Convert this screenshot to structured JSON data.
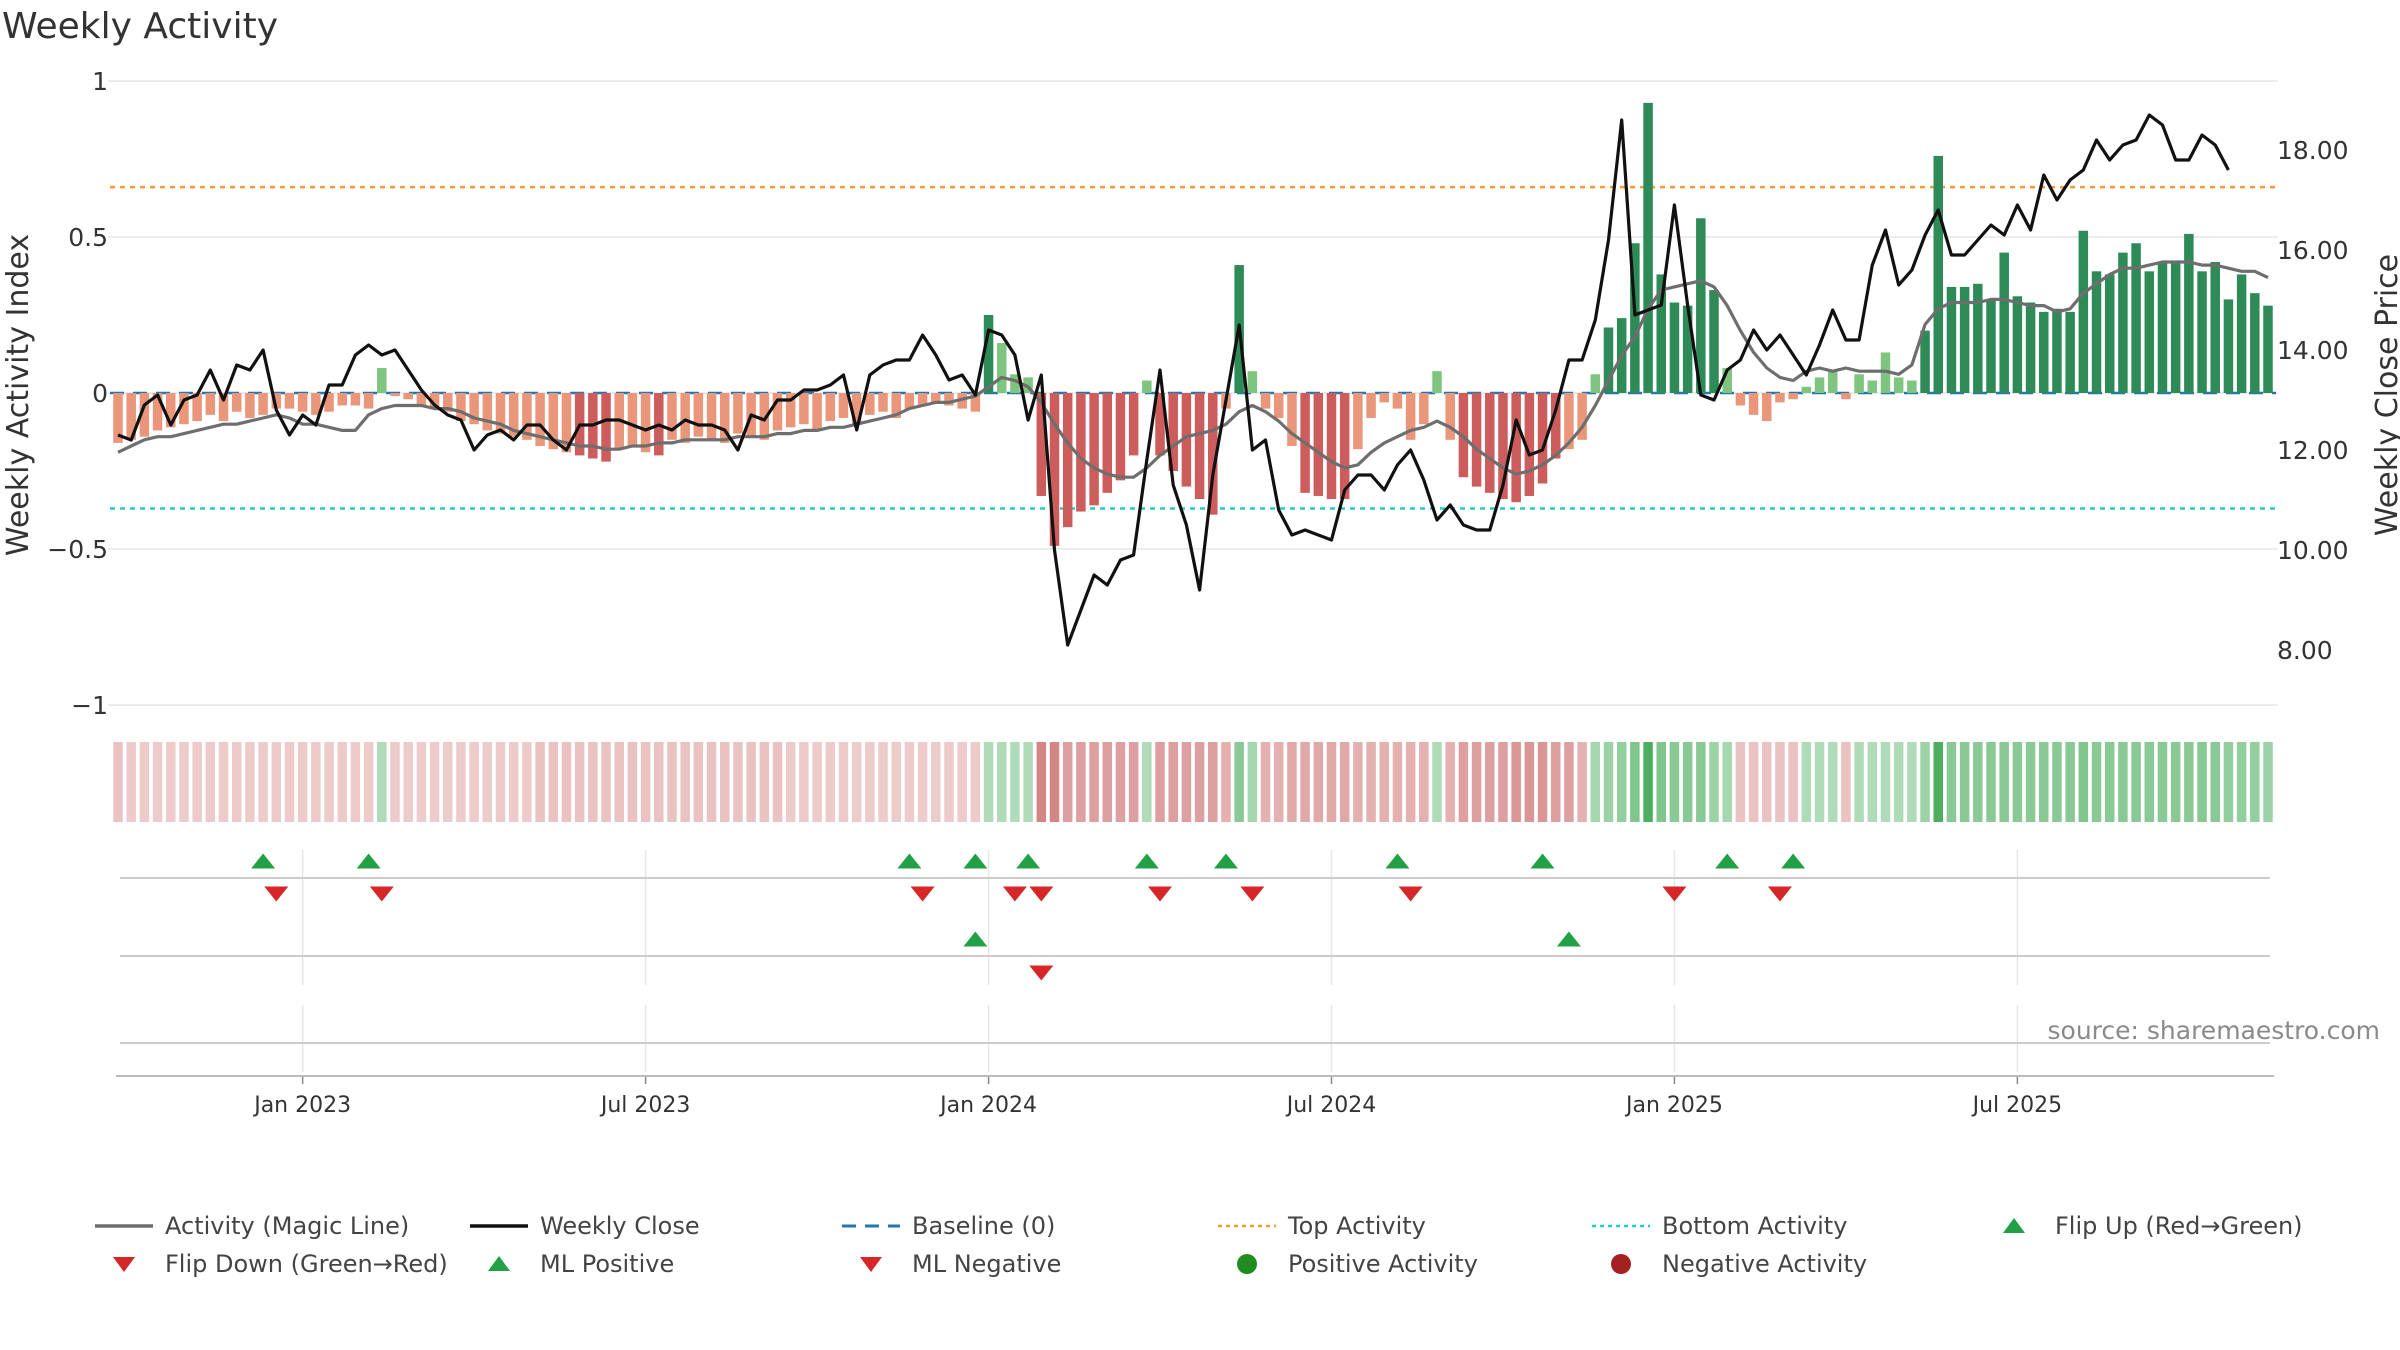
{
  "title": "Weekly Activity",
  "source": "source: sharemaestro.com",
  "colors": {
    "pos_dark": "#2e8b57",
    "pos_light": "#7fc47f",
    "neg_dark": "#cd5c5c",
    "neg_light": "#e9967a",
    "magic": "#6e6e6e",
    "close": "#111111",
    "baseline": "#1f77b4",
    "top": "#ff9933",
    "bottom": "#22cccc",
    "tri_up": "#22a045",
    "tri_down": "#d62728",
    "dot_pos": "#228b22",
    "dot_neg": "#a52020",
    "grid": "#e6e6e6"
  },
  "chart_data": {
    "type": "bar",
    "title": "Weekly Activity",
    "ylabel_left": "Weekly Activity Index",
    "ylabel_right": "Weekly Close Price",
    "ylim_left": [
      -1,
      1
    ],
    "ylim_right": [
      7.0,
      19.3
    ],
    "yticks_left": [
      {
        "v": 1,
        "label": "1"
      },
      {
        "v": 0.5,
        "label": "0.5"
      },
      {
        "v": 0,
        "label": "0"
      },
      {
        "v": -0.5,
        "label": "−0.5"
      },
      {
        "v": -1,
        "label": "−1"
      }
    ],
    "yticks_right": [
      {
        "v": 8,
        "label": "8.00"
      },
      {
        "v": 10,
        "label": "10.00"
      },
      {
        "v": 12,
        "label": "12.00"
      },
      {
        "v": 14,
        "label": "14.00"
      },
      {
        "v": 16,
        "label": "16.00"
      },
      {
        "v": 18,
        "label": "18.00"
      }
    ],
    "xticks": [
      {
        "week": 14,
        "label": "Jan 2023"
      },
      {
        "week": 40,
        "label": "Jul 2023"
      },
      {
        "week": 66,
        "label": "Jan 2024"
      },
      {
        "week": 92,
        "label": "Jul 2024"
      },
      {
        "week": 118,
        "label": "Jan 2025"
      },
      {
        "week": 144,
        "label": "Jul 2025"
      }
    ],
    "top_activity": 0.66,
    "bottom_activity": -0.37,
    "baseline": 0,
    "activity_index": [
      -0.16,
      -0.15,
      -0.14,
      -0.12,
      -0.11,
      -0.1,
      -0.09,
      -0.07,
      -0.09,
      -0.06,
      -0.08,
      -0.07,
      -0.05,
      -0.05,
      -0.06,
      -0.07,
      -0.06,
      -0.04,
      -0.04,
      -0.05,
      0.08,
      -0.01,
      -0.02,
      -0.04,
      -0.05,
      -0.06,
      -0.09,
      -0.1,
      -0.12,
      -0.13,
      -0.14,
      -0.15,
      -0.17,
      -0.18,
      -0.19,
      -0.2,
      -0.21,
      -0.22,
      -0.18,
      -0.17,
      -0.19,
      -0.2,
      -0.15,
      -0.16,
      -0.14,
      -0.15,
      -0.16,
      -0.13,
      -0.14,
      -0.15,
      -0.12,
      -0.11,
      -0.1,
      -0.12,
      -0.09,
      -0.08,
      -0.1,
      -0.07,
      -0.06,
      -0.08,
      -0.05,
      -0.04,
      -0.03,
      -0.04,
      -0.05,
      -0.06,
      0.25,
      0.16,
      0.06,
      0.05,
      -0.33,
      -0.49,
      -0.43,
      -0.38,
      -0.36,
      -0.32,
      -0.28,
      -0.2,
      0.04,
      -0.2,
      -0.25,
      -0.3,
      -0.34,
      -0.39,
      -0.05,
      0.41,
      0.07,
      -0.05,
      -0.08,
      -0.17,
      -0.32,
      -0.33,
      -0.34,
      -0.34,
      -0.18,
      -0.08,
      -0.03,
      -0.05,
      -0.15,
      -0.1,
      0.07,
      -0.15,
      -0.27,
      -0.3,
      -0.32,
      -0.34,
      -0.35,
      -0.33,
      -0.29,
      -0.21,
      -0.18,
      -0.15,
      0.06,
      0.21,
      0.24,
      0.48,
      0.93,
      0.38,
      0.29,
      0.28,
      0.56,
      0.33,
      0.08,
      -0.04,
      -0.07,
      -0.09,
      -0.03,
      -0.02,
      0.02,
      0.05,
      0.07,
      -0.02,
      0.06,
      0.04,
      0.13,
      0.05,
      0.04,
      0.2,
      0.76,
      0.34,
      0.34,
      0.35,
      0.3,
      0.45,
      0.31,
      0.29,
      0.26,
      0.27,
      0.26,
      0.52,
      0.39,
      0.38,
      0.45,
      0.48,
      0.39,
      0.42,
      0.42,
      0.51,
      0.39,
      0.42,
      0.3,
      0.38,
      0.32,
      0.28
    ],
    "magic_line": [
      -0.19,
      -0.17,
      -0.15,
      -0.14,
      -0.14,
      -0.13,
      -0.12,
      -0.11,
      -0.1,
      -0.1,
      -0.09,
      -0.08,
      -0.07,
      -0.08,
      -0.1,
      -0.1,
      -0.11,
      -0.12,
      -0.12,
      -0.07,
      -0.05,
      -0.04,
      -0.04,
      -0.04,
      -0.05,
      -0.05,
      -0.06,
      -0.08,
      -0.09,
      -0.1,
      -0.12,
      -0.13,
      -0.14,
      -0.15,
      -0.16,
      -0.17,
      -0.17,
      -0.18,
      -0.18,
      -0.17,
      -0.17,
      -0.16,
      -0.16,
      -0.15,
      -0.15,
      -0.15,
      -0.15,
      -0.14,
      -0.14,
      -0.14,
      -0.13,
      -0.13,
      -0.12,
      -0.12,
      -0.11,
      -0.11,
      -0.1,
      -0.09,
      -0.08,
      -0.07,
      -0.05,
      -0.04,
      -0.03,
      -0.03,
      -0.02,
      -0.01,
      0.02,
      0.05,
      0.04,
      0.02,
      -0.03,
      -0.1,
      -0.16,
      -0.21,
      -0.24,
      -0.26,
      -0.27,
      -0.27,
      -0.24,
      -0.2,
      -0.17,
      -0.14,
      -0.13,
      -0.12,
      -0.1,
      -0.06,
      -0.04,
      -0.06,
      -0.09,
      -0.13,
      -0.16,
      -0.19,
      -0.22,
      -0.24,
      -0.23,
      -0.19,
      -0.16,
      -0.14,
      -0.12,
      -0.11,
      -0.09,
      -0.11,
      -0.14,
      -0.18,
      -0.21,
      -0.24,
      -0.26,
      -0.25,
      -0.23,
      -0.2,
      -0.16,
      -0.11,
      -0.04,
      0.04,
      0.12,
      0.18,
      0.27,
      0.33,
      0.34,
      0.35,
      0.36,
      0.34,
      0.28,
      0.2,
      0.13,
      0.08,
      0.05,
      0.04,
      0.07,
      0.08,
      0.07,
      0.08,
      0.07,
      0.07,
      0.07,
      0.06,
      0.09,
      0.22,
      0.27,
      0.29,
      0.29,
      0.29,
      0.3,
      0.3,
      0.29,
      0.28,
      0.28,
      0.26,
      0.27,
      0.32,
      0.35,
      0.38,
      0.4,
      0.4,
      0.41,
      0.42,
      0.42,
      0.42,
      0.41,
      0.41,
      0.4,
      0.39,
      0.39,
      0.37
    ],
    "weekly_close": [
      12.3,
      12.2,
      12.9,
      13.1,
      12.5,
      13.0,
      13.1,
      13.6,
      13.0,
      13.7,
      13.6,
      14.0,
      12.8,
      12.3,
      12.7,
      12.5,
      13.3,
      13.3,
      13.9,
      14.1,
      13.9,
      14.0,
      13.6,
      13.2,
      12.9,
      12.7,
      12.6,
      12.0,
      12.3,
      12.4,
      12.2,
      12.5,
      12.5,
      12.2,
      12.0,
      12.5,
      12.5,
      12.6,
      12.6,
      12.5,
      12.4,
      12.5,
      12.4,
      12.6,
      12.5,
      12.5,
      12.4,
      12.0,
      12.7,
      12.6,
      13.0,
      13.0,
      13.2,
      13.2,
      13.3,
      13.5,
      12.4,
      13.5,
      13.7,
      13.8,
      13.8,
      14.3,
      13.9,
      13.4,
      13.5,
      13.1,
      14.4,
      14.3,
      13.9,
      12.6,
      13.5,
      10.0,
      8.1,
      8.8,
      9.5,
      9.3,
      9.8,
      9.9,
      11.8,
      13.6,
      11.3,
      10.5,
      9.2,
      11.5,
      13.0,
      14.5,
      12.0,
      12.2,
      10.8,
      10.3,
      10.4,
      10.3,
      10.2,
      11.2,
      11.5,
      11.5,
      11.2,
      11.7,
      12.0,
      11.4,
      10.6,
      10.9,
      10.5,
      10.4,
      10.4,
      11.3,
      12.6,
      11.9,
      12.0,
      12.8,
      13.8,
      13.8,
      14.6,
      16.2,
      18.6,
      14.7,
      14.8,
      14.9,
      16.9,
      14.9,
      13.1,
      13.0,
      13.6,
      13.8,
      14.4,
      14.0,
      14.3,
      13.9,
      13.5,
      14.1,
      14.8,
      14.2,
      14.2,
      15.7,
      16.4,
      15.3,
      15.6,
      16.3,
      16.8,
      15.9,
      15.9,
      16.2,
      16.5,
      16.3,
      16.9,
      16.4,
      17.5,
      17.0,
      17.4,
      17.6,
      18.2,
      17.8,
      18.1,
      18.2,
      18.7,
      18.5,
      17.8,
      17.8,
      18.3,
      18.1,
      17.6
    ],
    "activity_strip_strength": [
      0.35,
      0.3,
      0.3,
      0.3,
      0.3,
      0.3,
      0.3,
      0.3,
      0.3,
      0.3,
      0.3,
      0.3,
      0.3,
      0.3,
      0.3,
      0.3,
      0.3,
      0.3,
      0.3,
      0.3,
      0.4,
      0.3,
      0.3,
      0.3,
      0.3,
      0.3,
      0.3,
      0.3,
      0.3,
      0.3,
      0.3,
      0.3,
      0.35,
      0.35,
      0.35,
      0.35,
      0.35,
      0.35,
      0.35,
      0.35,
      0.35,
      0.35,
      0.35,
      0.35,
      0.35,
      0.35,
      0.35,
      0.35,
      0.35,
      0.35,
      0.35,
      0.3,
      0.3,
      0.3,
      0.3,
      0.3,
      0.3,
      0.3,
      0.3,
      0.3,
      0.3,
      0.3,
      0.3,
      0.3,
      0.3,
      0.3,
      0.4,
      0.4,
      0.4,
      0.4,
      0.7,
      0.7,
      0.55,
      0.55,
      0.55,
      0.55,
      0.55,
      0.55,
      0.4,
      0.55,
      0.55,
      0.55,
      0.55,
      0.55,
      0.45,
      0.6,
      0.45,
      0.45,
      0.45,
      0.5,
      0.5,
      0.5,
      0.5,
      0.5,
      0.45,
      0.45,
      0.45,
      0.45,
      0.45,
      0.45,
      0.4,
      0.45,
      0.55,
      0.55,
      0.55,
      0.55,
      0.6,
      0.6,
      0.6,
      0.55,
      0.55,
      0.45,
      0.45,
      0.5,
      0.55,
      0.65,
      0.9,
      0.65,
      0.6,
      0.6,
      0.6,
      0.5,
      0.45,
      0.35,
      0.35,
      0.35,
      0.35,
      0.35,
      0.4,
      0.4,
      0.4,
      0.35,
      0.4,
      0.4,
      0.4,
      0.4,
      0.4,
      0.5,
      0.9,
      0.6,
      0.6,
      0.6,
      0.6,
      0.6,
      0.6,
      0.6,
      0.6,
      0.6,
      0.6,
      0.65,
      0.6,
      0.6,
      0.6,
      0.6,
      0.6,
      0.6,
      0.6,
      0.6,
      0.6,
      0.6,
      0.55,
      0.55,
      0.55,
      0.5
    ],
    "flip_up_weeks": [
      11,
      19,
      60,
      65,
      69,
      78,
      84,
      97,
      108,
      122,
      127
    ],
    "flip_down_weeks": [
      12,
      20,
      61,
      68,
      70,
      79,
      86,
      98,
      118,
      126
    ],
    "ml_positive_weeks": [
      65,
      110
    ],
    "ml_negative_weeks": [
      70
    ]
  },
  "legend": [
    {
      "key": "magic",
      "label": "Activity (Magic Line)",
      "kind": "line"
    },
    {
      "key": "close",
      "label": "Weekly Close",
      "kind": "line"
    },
    {
      "key": "baseline",
      "label": "Baseline (0)",
      "kind": "dash"
    },
    {
      "key": "top",
      "label": "Top Activity",
      "kind": "dot"
    },
    {
      "key": "bottom",
      "label": "Bottom Activity",
      "kind": "dot"
    },
    {
      "key": "flip_up",
      "label": "Flip Up (Red→Green)",
      "kind": "tri_up"
    },
    {
      "key": "flip_down",
      "label": "Flip Down (Green→Red)",
      "kind": "tri_down"
    },
    {
      "key": "ml_pos",
      "label": "ML Positive",
      "kind": "tri_up"
    },
    {
      "key": "ml_neg",
      "label": "ML Negative",
      "kind": "tri_down"
    },
    {
      "key": "pos_act",
      "label": "Positive Activity",
      "kind": "dot_pos"
    },
    {
      "key": "neg_act",
      "label": "Negative Activity",
      "kind": "dot_neg"
    }
  ]
}
